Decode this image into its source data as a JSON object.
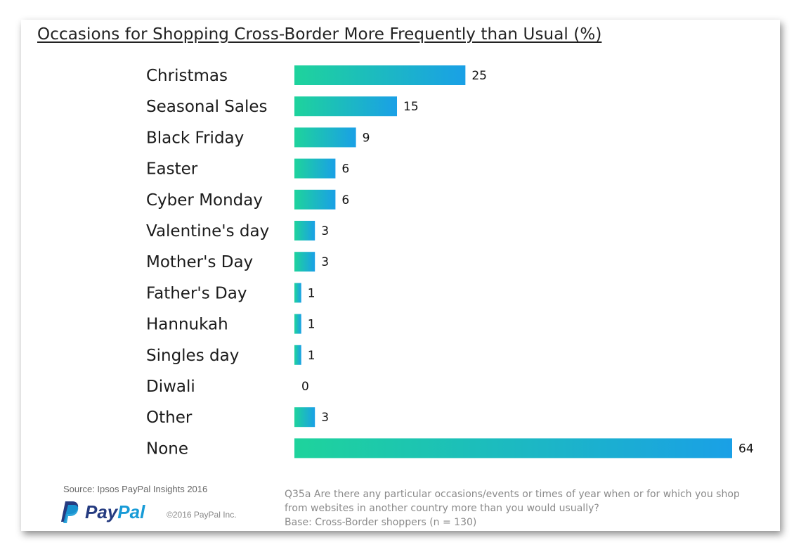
{
  "title": "Occasions for Shopping Cross-Border More Frequently than Usual (%)",
  "chart_data": {
    "type": "bar",
    "orientation": "horizontal",
    "title": "Occasions for Shopping Cross-Border More Frequently than Usual (%)",
    "categories": [
      "Christmas",
      "Seasonal Sales",
      "Black Friday",
      "Easter",
      "Cyber Monday",
      "Valentine's day",
      "Mother's Day",
      "Father's Day",
      "Hannukah",
      "Singles day",
      "Diwali",
      "Other",
      "None"
    ],
    "values": [
      25,
      15,
      9,
      6,
      6,
      3,
      3,
      1,
      1,
      1,
      0,
      3,
      64
    ],
    "xlim": [
      0,
      64
    ],
    "grid": false,
    "colors": {
      "gradient_start": "#1ed39c",
      "gradient_end": "#1aa0e6"
    }
  },
  "footer": {
    "source": "Source: Ipsos PayPal Insights 2016",
    "logo_pay": "Pay",
    "logo_pal": "Pal",
    "copyright": "©2016 PayPal Inc.",
    "note_line1": "Q35a  Are there any particular occasions/events or times of year when or for which you shop",
    "note_line2": "from websites in another country more than you would usually?",
    "note_line3": "Base: Cross-Border shoppers (n = 130)"
  },
  "colors": {
    "paypal_dark": "#253b80",
    "paypal_light": "#179bd7"
  }
}
